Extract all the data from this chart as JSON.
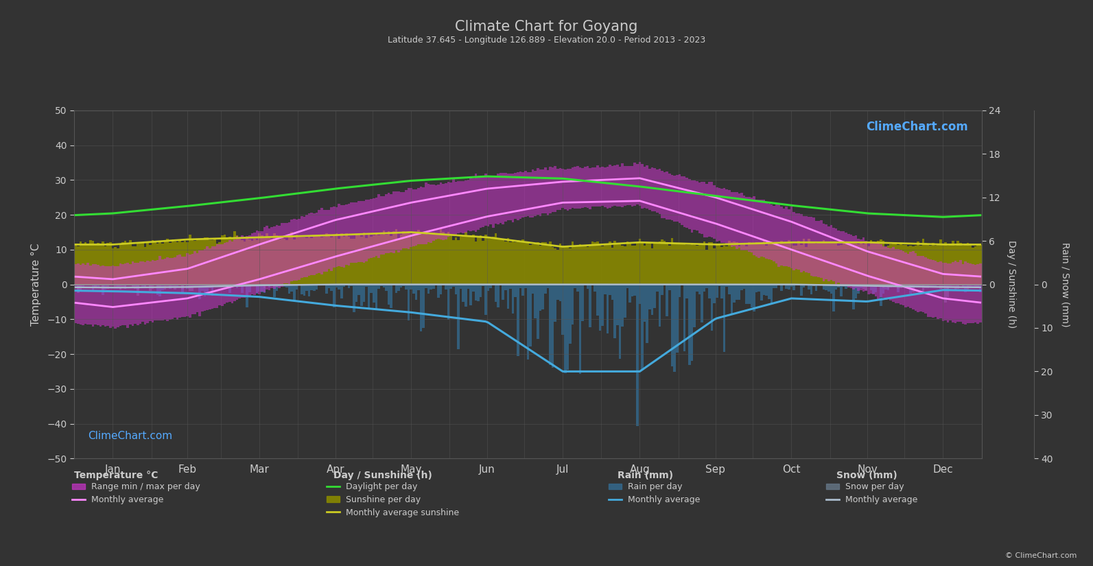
{
  "title": "Climate Chart for Goyang",
  "subtitle": "Latitude 37.645 - Longitude 126.889 - Elevation 20.0 - Period 2013 - 2023",
  "background_color": "#333333",
  "grid_color": "#555555",
  "text_color": "#cccccc",
  "months": [
    "Jan",
    "Feb",
    "Mar",
    "Apr",
    "May",
    "Jun",
    "Jul",
    "Aug",
    "Sep",
    "Oct",
    "Nov",
    "Dec"
  ],
  "month_centers": [
    15.5,
    45.5,
    74.5,
    105.0,
    135.5,
    166.0,
    196.5,
    227.5,
    258.0,
    288.5,
    319.0,
    349.5
  ],
  "month_boundaries": [
    0,
    31,
    59,
    90,
    120,
    151,
    181,
    212,
    243,
    273,
    304,
    334,
    365
  ],
  "daylight_per_day": [
    9.8,
    10.8,
    11.9,
    13.2,
    14.3,
    14.9,
    14.6,
    13.5,
    12.2,
    10.9,
    9.8,
    9.3
  ],
  "sunshine_per_day": [
    5.5,
    6.2,
    6.5,
    6.8,
    7.2,
    6.5,
    5.2,
    5.8,
    5.5,
    5.8,
    5.8,
    5.5
  ],
  "temp_max_monthly": [
    1.5,
    4.5,
    11.5,
    18.5,
    23.5,
    27.5,
    29.5,
    30.5,
    25.0,
    18.0,
    9.5,
    3.0
  ],
  "temp_min_monthly": [
    -6.5,
    -4.0,
    1.5,
    8.0,
    14.0,
    19.5,
    23.5,
    24.0,
    17.5,
    10.0,
    2.5,
    -4.0
  ],
  "temp_daily_max": [
    5.0,
    8.0,
    15.0,
    22.0,
    27.0,
    31.0,
    33.0,
    34.0,
    28.0,
    21.0,
    12.0,
    6.0
  ],
  "temp_daily_min": [
    -12.0,
    -9.0,
    -2.0,
    5.0,
    11.0,
    17.0,
    22.0,
    23.0,
    13.0,
    5.0,
    -2.0,
    -10.0
  ],
  "rain_monthly_mm": [
    22,
    28,
    40,
    68,
    90,
    120,
    280,
    280,
    110,
    45,
    55,
    18
  ],
  "snow_monthly_mm": [
    18,
    15,
    5,
    0,
    0,
    0,
    0,
    0,
    0,
    0,
    8,
    15
  ],
  "rain_monthly_curve_scale": 0.09,
  "sun_temp_scale": 2.083,
  "rain_bar_daily_mean": [
    0.7,
    0.9,
    1.3,
    2.2,
    2.9,
    3.9,
    9.0,
    9.0,
    3.6,
    1.5,
    1.8,
    0.6
  ],
  "snow_bar_daily_mean": [
    0.6,
    0.5,
    0.2,
    0.0,
    0.0,
    0.0,
    0.0,
    0.0,
    0.0,
    0.0,
    0.3,
    0.5
  ],
  "color_daylight": "#33dd33",
  "color_sunshine_bar": "#888800",
  "color_sunshine_line": "#cccc22",
  "color_temp_range": "#cc33cc",
  "color_temp_avg_line": "#ff88ff",
  "color_rain_bar": "#336688",
  "color_rain_line": "#44aadd",
  "color_snow_bar": "#667788",
  "color_snow_line": "#aabbcc",
  "watermark_color": "#55aaff",
  "watermark_text": "ClimeChart.com",
  "copyright_text": "© ClimeChart.com"
}
